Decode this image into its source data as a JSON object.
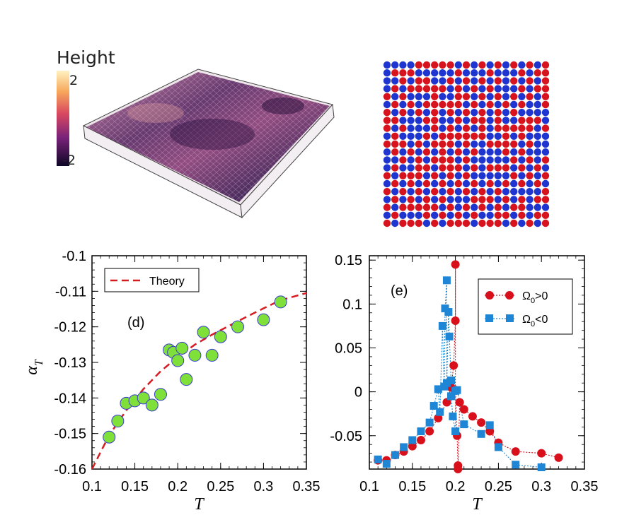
{
  "colorbar": {
    "title": "Height",
    "max_label": "2",
    "min_label": "-2"
  },
  "chart_data": [
    {
      "panel": "(d)",
      "type": "scatter",
      "xlabel": "T",
      "ylabel": "α",
      "ylabel_sub": "T",
      "xlim": [
        0.1,
        0.35
      ],
      "ylim": [
        -0.16,
        -0.1
      ],
      "xticks": [
        "0.1",
        "0.15",
        "0.2",
        "0.25",
        "0.3",
        "0.35"
      ],
      "yticks": [
        "-0.16",
        "-0.15",
        "-0.14",
        "-0.13",
        "-0.12",
        "-0.11",
        "-0.1"
      ],
      "legend": {
        "position": "top-left",
        "label": "Theory"
      },
      "series": [
        {
          "kind": "points",
          "color": "#7fe03a",
          "edge": "#3b3bd0",
          "points": [
            [
              0.12,
              -0.151
            ],
            [
              0.13,
              -0.1465
            ],
            [
              0.14,
              -0.1415
            ],
            [
              0.15,
              -0.1408
            ],
            [
              0.16,
              -0.14
            ],
            [
              0.17,
              -0.142
            ],
            [
              0.18,
              -0.139
            ],
            [
              0.19,
              -0.1265
            ],
            [
              0.195,
              -0.1272
            ],
            [
              0.2,
              -0.1295
            ],
            [
              0.205,
              -0.126
            ],
            [
              0.21,
              -0.1348
            ],
            [
              0.22,
              -0.128
            ],
            [
              0.23,
              -0.1215
            ],
            [
              0.24,
              -0.128
            ],
            [
              0.25,
              -0.1228
            ],
            [
              0.27,
              -0.12
            ],
            [
              0.3,
              -0.118
            ],
            [
              0.32,
              -0.113
            ]
          ]
        },
        {
          "kind": "curve",
          "name": "Theory",
          "color": "#d41c22",
          "points": [
            [
              0.1,
              -0.16
            ],
            [
              0.12,
              -0.1505
            ],
            [
              0.14,
              -0.1435
            ],
            [
              0.16,
              -0.1375
            ],
            [
              0.18,
              -0.1325
            ],
            [
              0.2,
              -0.1285
            ],
            [
              0.22,
              -0.125
            ],
            [
              0.24,
              -0.1222
            ],
            [
              0.26,
              -0.1197
            ],
            [
              0.28,
              -0.1172
            ],
            [
              0.3,
              -0.1148
            ],
            [
              0.32,
              -0.1125
            ],
            [
              0.35,
              -0.1105
            ]
          ]
        }
      ]
    },
    {
      "panel": "(e)",
      "type": "line",
      "xlabel": "T",
      "xlim": [
        0.1,
        0.35
      ],
      "ylim": [
        -0.088,
        0.155
      ],
      "xticks": [
        "0.1",
        "0.15",
        "0.2",
        "0.25",
        "0.3",
        "0.35"
      ],
      "yticks": [
        "-0.05",
        "0",
        "0.05",
        "0.1",
        "0.15"
      ],
      "ytick_values": [
        -0.05,
        0,
        0.05,
        0.1,
        0.15
      ],
      "legend": {
        "position": "top-right"
      },
      "series": [
        {
          "name": "Ω",
          "name_sub": "0",
          "name_rel": ">0",
          "marker": "circle",
          "color": "#d8101c",
          "points": [
            [
              0.11,
              -0.078
            ],
            [
              0.12,
              -0.078
            ],
            [
              0.13,
              -0.072
            ],
            [
              0.14,
              -0.068
            ],
            [
              0.15,
              -0.062
            ],
            [
              0.16,
              -0.055
            ],
            [
              0.17,
              -0.045
            ],
            [
              0.18,
              -0.03
            ],
            [
              0.19,
              -0.012
            ],
            [
              0.195,
              0.005
            ],
            [
              0.198,
              0.03
            ],
            [
              0.2,
              0.081
            ],
            [
              0.2,
              0.145
            ],
            [
              0.2,
              0.002
            ],
            [
              0.202,
              -0.05
            ],
            [
              0.203,
              -0.084
            ],
            [
              0.203,
              -0.088
            ],
            [
              0.205,
              -0.012
            ],
            [
              0.21,
              -0.02
            ],
            [
              0.22,
              -0.028
            ],
            [
              0.23,
              -0.035
            ],
            [
              0.24,
              -0.045
            ],
            [
              0.25,
              -0.058
            ],
            [
              0.27,
              -0.068
            ],
            [
              0.3,
              -0.07
            ],
            [
              0.32,
              -0.075
            ]
          ]
        },
        {
          "name": "Ω",
          "name_sub": "0",
          "name_rel": "<0",
          "marker": "square",
          "color": "#1f86d6",
          "points": [
            [
              0.11,
              -0.077
            ],
            [
              0.12,
              -0.082
            ],
            [
              0.13,
              -0.072
            ],
            [
              0.14,
              -0.063
            ],
            [
              0.15,
              -0.055
            ],
            [
              0.16,
              -0.045
            ],
            [
              0.17,
              -0.035
            ],
            [
              0.175,
              -0.016
            ],
            [
              0.18,
              0.003
            ],
            [
              0.182,
              -0.023
            ],
            [
              0.185,
              0.075
            ],
            [
              0.187,
              0.006
            ],
            [
              0.188,
              0.095
            ],
            [
              0.19,
              0.127
            ],
            [
              0.19,
              0.01
            ],
            [
              0.192,
              0.091
            ],
            [
              0.193,
              0.063
            ],
            [
              0.195,
              0.013
            ],
            [
              0.195,
              -0.005
            ],
            [
              0.197,
              -0.028
            ],
            [
              0.2,
              -0.045
            ],
            [
              0.2,
              0.001
            ],
            [
              0.202,
              0.002
            ],
            [
              0.21,
              -0.037
            ],
            [
              0.23,
              -0.048
            ],
            [
              0.24,
              -0.038
            ],
            [
              0.25,
              -0.063
            ],
            [
              0.27,
              -0.083
            ],
            [
              0.3,
              -0.086
            ]
          ]
        }
      ]
    }
  ]
}
